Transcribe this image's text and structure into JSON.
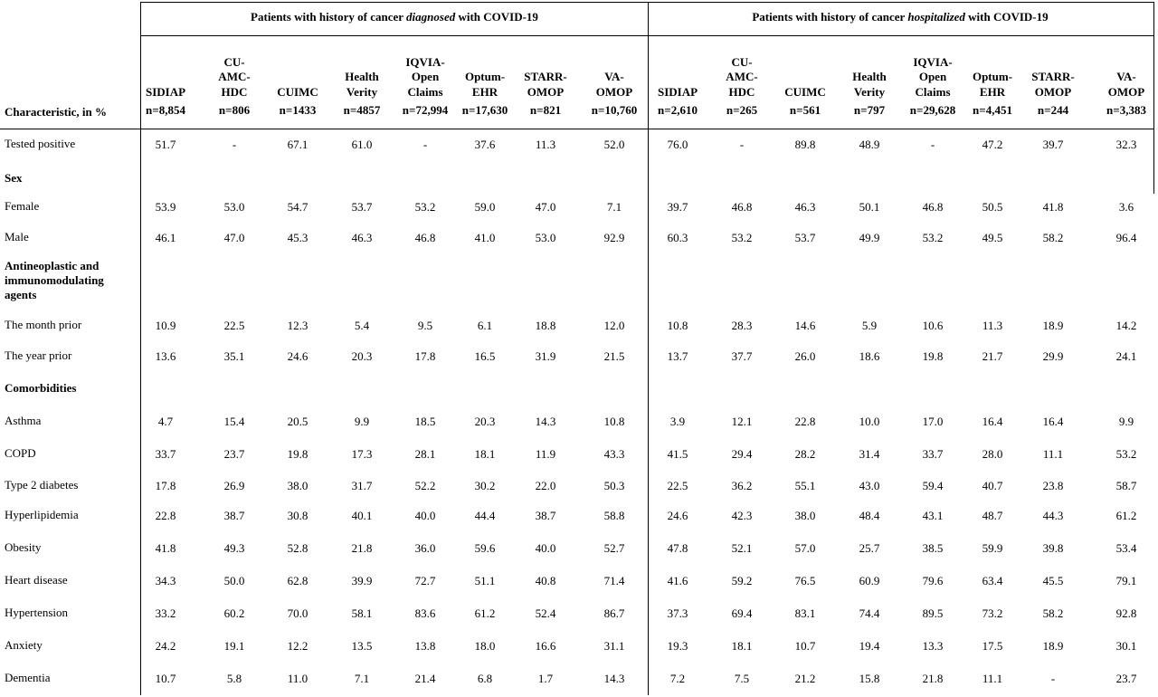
{
  "header": {
    "characteristic_label": "Characteristic, in %",
    "group_left": {
      "prefix": "Patients with history of cancer ",
      "emph": "diagnosed",
      "suffix": " with COVID-19"
    },
    "group_right": {
      "prefix": "Patients with history of cancer ",
      "emph": "hospitalized",
      "suffix": " with COVID-19"
    },
    "columns_left": [
      {
        "name": "SIDIAP",
        "n": "n=8,854"
      },
      {
        "name": "CU-\nAMC-\nHDC",
        "n": "n=806"
      },
      {
        "name": "CUIMC",
        "n": "n=1433"
      },
      {
        "name": "Health\nVerity",
        "n": "n=4857"
      },
      {
        "name": "IQVIA-\nOpen\nClaims",
        "n": "n=72,994"
      },
      {
        "name": "Optum-\nEHR",
        "n": "n=17,630"
      },
      {
        "name": "STARR-\nOMOP",
        "n": "n=821"
      },
      {
        "name": "VA-\nOMOP",
        "n": "n=10,760"
      }
    ],
    "columns_right": [
      {
        "name": "SIDIAP",
        "n": "n=2,610"
      },
      {
        "name": "CU-\nAMC-\nHDC",
        "n": "n=265"
      },
      {
        "name": "CUIMC",
        "n": "n=561"
      },
      {
        "name": "Health\nVerity",
        "n": "n=797"
      },
      {
        "name": "IQVIA-\nOpen\nClaims",
        "n": "n=29,628"
      },
      {
        "name": "Optum-\nEHR",
        "n": "n=4,451"
      },
      {
        "name": "STARR-\nOMOP",
        "n": "n=244"
      },
      {
        "name": "VA-\nOMOP",
        "n": "n=3,383"
      }
    ]
  },
  "rows": [
    {
      "label": "Tested positive",
      "section": false,
      "values": [
        "51.7",
        "-",
        "67.1",
        "61.0",
        "-",
        "37.6",
        "11.3",
        "52.0",
        "76.0",
        "-",
        "89.8",
        "48.9",
        "-",
        "47.2",
        "39.7",
        "32.3"
      ]
    },
    {
      "label": "Sex",
      "section": true,
      "values": []
    },
    {
      "label": "Female",
      "section": false,
      "values": [
        "53.9",
        "53.0",
        "54.7",
        "53.7",
        "53.2",
        "59.0",
        "47.0",
        "7.1",
        "39.7",
        "46.8",
        "46.3",
        "50.1",
        "46.8",
        "50.5",
        "41.8",
        "3.6"
      ]
    },
    {
      "label": "Male",
      "section": false,
      "values": [
        "46.1",
        "47.0",
        "45.3",
        "46.3",
        "46.8",
        "41.0",
        "53.0",
        "92.9",
        "60.3",
        "53.2",
        "53.7",
        "49.9",
        "53.2",
        "49.5",
        "58.2",
        "96.4"
      ]
    },
    {
      "label": "Antineoplastic and\nimmunomodulating\nagents",
      "section": true,
      "values": []
    },
    {
      "label": "The month prior",
      "section": false,
      "values": [
        "10.9",
        "22.5",
        "12.3",
        "5.4",
        "9.5",
        "6.1",
        "18.8",
        "12.0",
        "10.8",
        "28.3",
        "14.6",
        "5.9",
        "10.6",
        "11.3",
        "18.9",
        "14.2"
      ]
    },
    {
      "label": "The year prior",
      "section": false,
      "values": [
        "13.6",
        "35.1",
        "24.6",
        "20.3",
        "17.8",
        "16.5",
        "31.9",
        "21.5",
        "13.7",
        "37.7",
        "26.0",
        "18.6",
        "19.8",
        "21.7",
        "29.9",
        "24.1"
      ]
    },
    {
      "label": "Comorbidities",
      "section": true,
      "values": []
    },
    {
      "label": "Asthma",
      "section": false,
      "values": [
        "4.7",
        "15.4",
        "20.5",
        "9.9",
        "18.5",
        "20.3",
        "14.3",
        "10.8",
        "3.9",
        "12.1",
        "22.8",
        "10.0",
        "17.0",
        "16.4",
        "16.4",
        "9.9"
      ]
    },
    {
      "label": "COPD",
      "section": false,
      "values": [
        "33.7",
        "23.7",
        "19.8",
        "17.3",
        "28.1",
        "18.1",
        "11.9",
        "43.3",
        "41.5",
        "29.4",
        "28.2",
        "31.4",
        "33.7",
        "28.0",
        "11.1",
        "53.2"
      ]
    },
    {
      "label": "Type 2 diabetes",
      "section": false,
      "values": [
        "17.8",
        "26.9",
        "38.0",
        "31.7",
        "52.2",
        "30.2",
        "22.0",
        "50.3",
        "22.5",
        "36.2",
        "55.1",
        "43.0",
        "59.4",
        "40.7",
        "23.8",
        "58.7"
      ]
    },
    {
      "label": "Hyperlipidemia",
      "section": false,
      "values": [
        "22.8",
        "38.7",
        "30.8",
        "40.1",
        "40.0",
        "44.4",
        "38.7",
        "58.8",
        "24.6",
        "42.3",
        "38.0",
        "48.4",
        "43.1",
        "48.7",
        "44.3",
        "61.2"
      ]
    },
    {
      "label": "Obesity",
      "section": false,
      "values": [
        "41.8",
        "49.3",
        "52.8",
        "21.8",
        "36.0",
        "59.6",
        "40.0",
        "52.7",
        "47.8",
        "52.1",
        "57.0",
        "25.7",
        "38.5",
        "59.9",
        "39.8",
        "53.4"
      ]
    },
    {
      "label": "Heart disease",
      "section": false,
      "values": [
        "34.3",
        "50.0",
        "62.8",
        "39.9",
        "72.7",
        "51.1",
        "40.8",
        "71.4",
        "41.6",
        "59.2",
        "76.5",
        "60.9",
        "79.6",
        "63.4",
        "45.5",
        "79.1"
      ]
    },
    {
      "label": "Hypertension",
      "section": false,
      "values": [
        "33.2",
        "60.2",
        "70.0",
        "58.1",
        "83.6",
        "61.2",
        "52.4",
        "86.7",
        "37.3",
        "69.4",
        "83.1",
        "74.4",
        "89.5",
        "73.2",
        "58.2",
        "92.8"
      ]
    },
    {
      "label": "Anxiety",
      "section": false,
      "values": [
        "24.2",
        "19.1",
        "12.2",
        "13.5",
        "13.8",
        "18.0",
        "16.6",
        "31.1",
        "19.3",
        "18.1",
        "10.7",
        "19.4",
        "13.3",
        "17.5",
        "18.9",
        "30.1"
      ]
    },
    {
      "label": "Dementia",
      "section": false,
      "values": [
        "10.7",
        "5.8",
        "11.0",
        "7.1",
        "21.4",
        "6.8",
        "1.7",
        "14.3",
        "7.2",
        "7.5",
        "21.2",
        "15.8",
        "21.8",
        "11.1",
        "-",
        "23.7"
      ]
    }
  ]
}
